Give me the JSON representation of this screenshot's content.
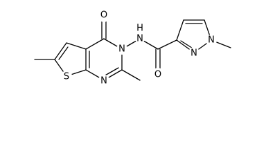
{
  "atoms": [
    {
      "label": "O"
    },
    {
      "label": "N"
    },
    {
      "label": "H"
    },
    {
      "label": "N"
    },
    {
      "label": "S"
    },
    {
      "label": "N"
    },
    {
      "label": "N"
    },
    {
      "label": "N"
    },
    {
      "label": "O"
    }
  ]
}
